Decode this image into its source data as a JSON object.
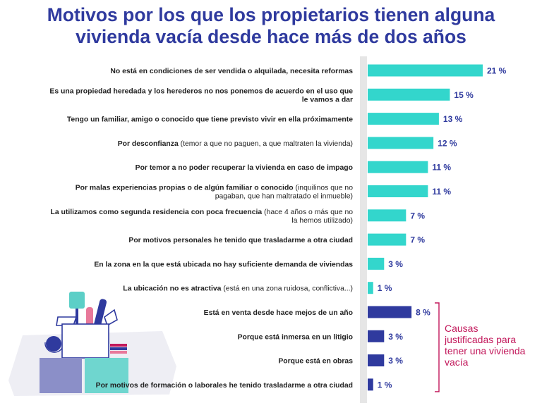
{
  "title_line1": "Motivos por los que los propietarios tienen alguna",
  "title_line2": "vivienda vacía desde hace más de dos años",
  "colors": {
    "title": "#2f3a9e",
    "bar_light": "#33d6cc",
    "bar_dark": "#2f3a9e",
    "note": "#c2185b",
    "axis_band": "#e6e6e6"
  },
  "annotation": "Causas justificadas para tener una vivienda vacía",
  "chart_data": {
    "type": "bar",
    "orientation": "horizontal",
    "title": "Motivos por los que los propietarios tienen alguna vivienda vacía desde hace más de dos años",
    "unit": "%",
    "xlim": [
      0,
      21
    ],
    "grid": false,
    "categories": [
      {
        "strong": "No está en condiciones de ser vendida o alquilada, necesita reformas",
        "light": ""
      },
      {
        "strong": "Es una propiedad heredada y los herederos no nos ponemos de acuerdo en el uso que le vamos a dar",
        "light": ""
      },
      {
        "strong": "Tengo un familiar, amigo o conocido que tiene previsto vivir en ella próximamente",
        "light": ""
      },
      {
        "strong": "Por desconfianza",
        "light": "(temor a que no paguen, a que maltraten la vivienda)"
      },
      {
        "strong": "Por temor a no poder recuperar la vivienda en caso de impago",
        "light": ""
      },
      {
        "strong": "Por malas experiencias propias o de algún familiar o conocido",
        "light": "(inquilinos que no pagaban, que han maltratado el inmueble)"
      },
      {
        "strong": "La utilizamos como segunda residencia con poca frecuencia",
        "light": "(hace 4 años o más que no la hemos utilizado)"
      },
      {
        "strong": "Por motivos personales he tenido que trasladarme a otra ciudad",
        "light": ""
      },
      {
        "strong": "En la zona en la que está ubicada no hay suficiente demanda de viviendas",
        "light": ""
      },
      {
        "strong": "La ubicación no es atractiva",
        "light": "(está en una zona ruidosa, conflictiva...)"
      },
      {
        "strong": "Está en venta desde hace mejos de un año",
        "light": ""
      },
      {
        "strong": "Porque está inmersa en un litigio",
        "light": ""
      },
      {
        "strong": "Porque está en obras",
        "light": ""
      },
      {
        "strong": "Por motivos de formación o laborales he tenido trasladarme a otra ciudad",
        "light": ""
      }
    ],
    "values": [
      21,
      15,
      13,
      12,
      11,
      11,
      7,
      7,
      3,
      1,
      8,
      3,
      3,
      1
    ],
    "value_labels": [
      "21 %",
      "15 %",
      "13 %",
      "12 %",
      "11 %",
      "11 %",
      "7 %",
      "7 %",
      "3 %",
      "1 %",
      "8 %",
      "3 %",
      "3 %",
      "1 %"
    ],
    "group": [
      "general",
      "general",
      "general",
      "general",
      "general",
      "general",
      "general",
      "general",
      "general",
      "general",
      "justified",
      "justified",
      "justified",
      "justified"
    ]
  }
}
